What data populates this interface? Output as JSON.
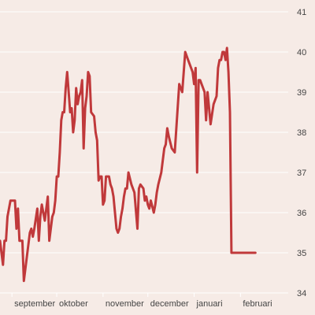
{
  "colors": {
    "background": "#f6ebe6",
    "grid": "#ffffff",
    "line": "#c0393b",
    "text": "#444444"
  },
  "chart_data": {
    "type": "line",
    "title": "",
    "xlabel": "",
    "ylabel": "",
    "ylim": [
      34,
      41
    ],
    "yticks": [
      34,
      35,
      36,
      37,
      38,
      39,
      40,
      41
    ],
    "xlim": [
      "2023-08-24",
      "2024-03-04"
    ],
    "grid": true,
    "xticks": [
      {
        "label": "september",
        "date": "2023-09-01"
      },
      {
        "label": "oktober",
        "date": "2023-10-01"
      },
      {
        "label": "november",
        "date": "2023-11-01"
      },
      {
        "label": "december",
        "date": "2023-12-01"
      },
      {
        "label": "januari",
        "date": "2024-01-01"
      },
      {
        "label": "februari",
        "date": "2024-02-01"
      }
    ],
    "series": [
      {
        "x": [
          "2023-08-24",
          "2023-08-26",
          "2023-08-27",
          "2023-08-28",
          "2023-08-29",
          "2023-08-31",
          "2023-09-01",
          "2023-09-02",
          "2023-09-03",
          "2023-09-04",
          "2023-09-05",
          "2023-09-06",
          "2023-09-08",
          "2023-09-09",
          "2023-09-10",
          "2023-09-12",
          "2023-09-13",
          "2023-09-14",
          "2023-09-15",
          "2023-09-16",
          "2023-09-18",
          "2023-09-19",
          "2023-09-20",
          "2023-09-21",
          "2023-09-22",
          "2023-09-23",
          "2023-09-25",
          "2023-09-26",
          "2023-09-27",
          "2023-09-28",
          "2023-09-29",
          "2023-09-30",
          "2023-10-01",
          "2023-10-02",
          "2023-10-03",
          "2023-10-04",
          "2023-10-05",
          "2023-10-06",
          "2023-10-07",
          "2023-10-08",
          "2023-10-10",
          "2023-10-11",
          "2023-10-12",
          "2023-10-13",
          "2023-10-14",
          "2023-10-15",
          "2023-10-16",
          "2023-10-17",
          "2023-10-18",
          "2023-10-19",
          "2023-10-20",
          "2023-10-21",
          "2023-10-22",
          "2023-10-23",
          "2023-10-24",
          "2023-10-26",
          "2023-10-27",
          "2023-10-28",
          "2023-10-29",
          "2023-10-30",
          "2023-10-31",
          "2023-11-01",
          "2023-11-02",
          "2023-11-03",
          "2023-11-04",
          "2023-11-05",
          "2023-11-06",
          "2023-11-07",
          "2023-11-08",
          "2023-11-10",
          "2023-11-11",
          "2023-11-12",
          "2023-11-13",
          "2023-11-14",
          "2023-11-15",
          "2023-11-16",
          "2023-11-17",
          "2023-11-18",
          "2023-11-20",
          "2023-11-21",
          "2023-11-22",
          "2023-11-24",
          "2023-11-25",
          "2023-11-26",
          "2023-11-28",
          "2023-11-29",
          "2023-11-30",
          "2023-12-01",
          "2023-12-02",
          "2023-12-03",
          "2023-12-05",
          "2023-12-06",
          "2023-12-07",
          "2023-12-08",
          "2023-12-10",
          "2023-12-11",
          "2023-12-12",
          "2023-12-13",
          "2023-12-14",
          "2023-12-15",
          "2023-12-17",
          "2023-12-19",
          "2023-12-22",
          "2023-12-24",
          "2023-12-26",
          "2023-12-28",
          "2023-12-29",
          "2023-12-31",
          "2024-01-01",
          "2024-01-02",
          "2024-01-03",
          "2024-01-04",
          "2024-01-05",
          "2024-01-06",
          "2024-01-07",
          "2024-01-08",
          "2024-01-09",
          "2024-01-10",
          "2024-01-11",
          "2024-01-12",
          "2024-01-14",
          "2024-01-16",
          "2024-01-17",
          "2024-01-18",
          "2024-01-19",
          "2024-01-20",
          "2024-01-21",
          "2024-01-22",
          "2024-01-23",
          "2024-01-24",
          "2024-01-25",
          "2024-01-26",
          "2024-01-27",
          "2024-01-28",
          "2024-01-29",
          "2024-01-30",
          "2024-01-31",
          "2024-02-01",
          "2024-02-02",
          "2024-02-03",
          "2024-02-04",
          "2024-02-05",
          "2024-02-06",
          "2024-02-07",
          "2024-02-08",
          "2024-02-11"
        ],
        "values": [
          35.3,
          34.7,
          35.3,
          35.3,
          35.9,
          36.3,
          36.3,
          36.3,
          36.3,
          35.6,
          36.1,
          35.3,
          35.3,
          34.3,
          34.6,
          35.2,
          35.5,
          35.6,
          35.4,
          35.6,
          36.1,
          35.3,
          35.9,
          36.2,
          36.0,
          35.8,
          36.4,
          35.3,
          35.6,
          35.9,
          36.0,
          36.3,
          36.9,
          36.9,
          37.5,
          38.3,
          38.5,
          38.5,
          39.1,
          39.5,
          38.5,
          38.6,
          38.0,
          38.3,
          39.1,
          38.7,
          38.9,
          39.0,
          39.3,
          37.6,
          38.6,
          38.9,
          39.5,
          39.4,
          38.5,
          38.4,
          38.0,
          37.8,
          36.8,
          36.9,
          36.9,
          36.2,
          36.3,
          36.9,
          36.9,
          36.9,
          36.7,
          36.6,
          36.4,
          35.6,
          35.5,
          35.6,
          35.9,
          36.1,
          36.4,
          36.6,
          36.6,
          37.0,
          36.7,
          36.6,
          36.5,
          35.6,
          36.6,
          36.7,
          36.6,
          36.3,
          36.4,
          36.2,
          36.1,
          36.3,
          36.0,
          36.2,
          36.5,
          36.7,
          37.0,
          37.3,
          37.6,
          37.7,
          38.1,
          37.9,
          37.6,
          37.5,
          39.2,
          39.0,
          40.0,
          39.8,
          39.7,
          39.5,
          39.2,
          39.6,
          37.0,
          39.3,
          39.3,
          39.2,
          39.1,
          39.0,
          38.3,
          39.0,
          38.6,
          38.2,
          38.7,
          38.9,
          39.6,
          39.8,
          39.8,
          40.0,
          40.0,
          39.8,
          40.1,
          39.5,
          38.5,
          35.0,
          35.0,
          35.0,
          35.0,
          35.0,
          35.0,
          35.0,
          35.0,
          35.0,
          35.0,
          35.0,
          35.0,
          35.0,
          35.0,
          35.0
        ],
        "color": "#c0393b"
      }
    ]
  }
}
